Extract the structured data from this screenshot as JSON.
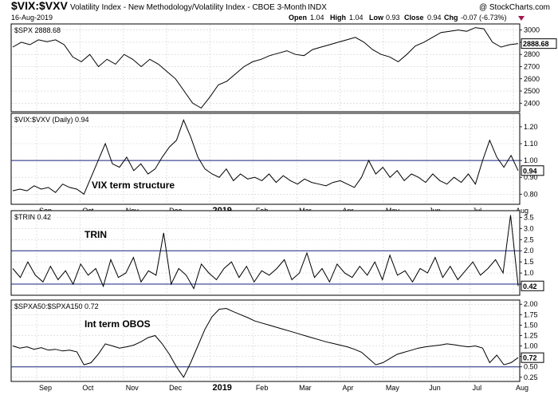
{
  "header": {
    "symbol": "$VIX:$VXV",
    "description": "Volatility Index - New Methodology/Volatility Index - CBOE 3-Month",
    "exchange": "INDX",
    "date": "16-Aug-2019",
    "open_label": "Open",
    "open": "1.04",
    "high_label": "High",
    "high": "1.04",
    "low_label": "Low",
    "low": "0.93",
    "close_label": "Close",
    "close": "0.94",
    "chg_label": "Chg",
    "chg": "-0.07 (-6.73%)",
    "watermark": "@ StockCharts.com"
  },
  "time_axis": {
    "labels": [
      "Sep",
      "Oct",
      "Nov",
      "Dec",
      "2019",
      "Feb",
      "Mar",
      "Apr",
      "May",
      "Jun",
      "Jul",
      "Aug"
    ]
  },
  "chart_data": [
    {
      "type": "line",
      "title": "$SPX 2888.68",
      "current_value": "2888.68",
      "ylim": [
        2330,
        3050
      ],
      "yticks": [
        "3000",
        "2900",
        "2800",
        "2700",
        "2600",
        "2500",
        "2400"
      ],
      "series": [
        {
          "name": "$SPX",
          "values": [
            2860,
            2900,
            2880,
            2920,
            2905,
            2920,
            2880,
            2780,
            2740,
            2800,
            2700,
            2760,
            2720,
            2800,
            2760,
            2700,
            2760,
            2720,
            2660,
            2600,
            2500,
            2400,
            2360,
            2450,
            2550,
            2580,
            2640,
            2700,
            2740,
            2760,
            2790,
            2810,
            2830,
            2800,
            2790,
            2840,
            2860,
            2880,
            2900,
            2920,
            2940,
            2900,
            2840,
            2800,
            2780,
            2740,
            2800,
            2870,
            2900,
            2940,
            2980,
            2990,
            3000,
            2990,
            3020,
            3010,
            2900,
            2860,
            2880,
            2888.68
          ]
        }
      ]
    },
    {
      "type": "line",
      "title": "$VIX:$VXV (Daily) 0.94",
      "current_value": "0.94",
      "annotation": "VIX term structure",
      "ylim": [
        0.74,
        1.28
      ],
      "yticks": [
        "1.20",
        "1.10",
        "1.00",
        "0.90",
        "0.80"
      ],
      "reference_line": 1.0,
      "series": [
        {
          "name": "$VIX:$VXV",
          "values": [
            0.82,
            0.83,
            0.82,
            0.85,
            0.83,
            0.84,
            0.81,
            0.86,
            0.84,
            0.83,
            0.8,
            0.9,
            1.0,
            1.1,
            0.98,
            0.96,
            1.02,
            0.94,
            0.98,
            0.92,
            0.95,
            1.02,
            1.08,
            1.12,
            1.24,
            1.14,
            1.02,
            0.95,
            0.92,
            0.9,
            0.95,
            0.88,
            0.92,
            0.89,
            0.9,
            0.88,
            0.92,
            0.87,
            0.91,
            0.88,
            0.86,
            0.89,
            0.87,
            0.86,
            0.85,
            0.87,
            0.88,
            0.86,
            0.84,
            0.9,
            1.0,
            0.92,
            0.96,
            0.9,
            0.94,
            0.88,
            0.92,
            0.9,
            0.87,
            0.92,
            0.88,
            0.86,
            0.9,
            0.87,
            0.92,
            0.86,
            1.0,
            1.12,
            1.02,
            0.96,
            1.03,
            0.94
          ]
        }
      ]
    },
    {
      "type": "line",
      "title": "$TRIN 0.42",
      "current_value": "0.42",
      "annotation": "TRIN",
      "ylim": [
        0,
        3.8
      ],
      "yticks": [
        "3.5",
        "3.0",
        "2.5",
        "2.0",
        "1.5",
        "1.0",
        "0.5"
      ],
      "reference_lines": [
        2.0,
        0.5
      ],
      "series": [
        {
          "name": "$TRIN",
          "values": [
            1.2,
            0.8,
            1.5,
            0.9,
            0.6,
            1.3,
            0.7,
            1.1,
            0.5,
            1.4,
            0.9,
            1.2,
            0.4,
            1.6,
            0.8,
            1.0,
            1.7,
            0.6,
            1.1,
            0.9,
            2.8,
            0.5,
            1.2,
            0.9,
            0.3,
            1.4,
            1.0,
            0.7,
            1.2,
            1.5,
            0.8,
            1.3,
            0.6,
            1.1,
            0.9,
            1.2,
            1.6,
            0.7,
            1.0,
            1.9,
            0.8,
            1.2,
            0.6,
            1.4,
            1.0,
            0.8,
            1.3,
            0.9,
            1.5,
            0.7,
            1.8,
            0.9,
            1.1,
            0.6,
            1.2,
            1.0,
            1.7,
            0.8,
            1.3,
            0.7,
            1.1,
            1.5,
            0.9,
            1.2,
            1.6,
            1.0,
            3.6,
            0.42
          ]
        }
      ]
    },
    {
      "type": "line",
      "title": "$SPXA50:$SPXA150 0.72",
      "current_value": "0.72",
      "annotation": "Int term OBOS",
      "ylim": [
        0.15,
        2.1
      ],
      "yticks": [
        "2.00",
        "1.75",
        "1.50",
        "1.25",
        "1.00",
        "0.75",
        "0.50",
        "0.25"
      ],
      "reference_line": 0.5,
      "series": [
        {
          "name": "$SPXA50:$SPXA150",
          "values": [
            1.0,
            0.95,
            0.98,
            0.92,
            0.96,
            0.9,
            0.92,
            0.88,
            0.9,
            0.86,
            0.55,
            0.6,
            0.8,
            1.05,
            1.0,
            0.95,
            0.98,
            1.02,
            1.1,
            1.2,
            1.25,
            1.05,
            0.8,
            0.5,
            0.25,
            0.6,
            1.0,
            1.4,
            1.7,
            1.88,
            1.9,
            1.82,
            1.75,
            1.68,
            1.6,
            1.55,
            1.5,
            1.45,
            1.4,
            1.35,
            1.3,
            1.25,
            1.2,
            1.15,
            1.1,
            1.06,
            1.02,
            0.98,
            0.92,
            0.85,
            0.7,
            0.55,
            0.6,
            0.7,
            0.8,
            0.85,
            0.9,
            0.95,
            0.98,
            1.0,
            1.02,
            1.05,
            1.03,
            1.0,
            0.98,
            1.0,
            0.95,
            0.6,
            0.78,
            0.55,
            0.6,
            0.72
          ]
        }
      ]
    }
  ]
}
